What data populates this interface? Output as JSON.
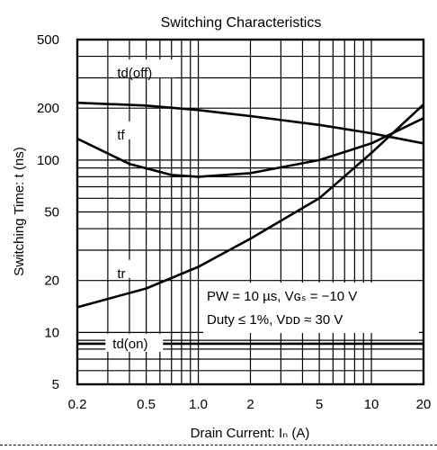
{
  "chart_data": {
    "type": "line",
    "title": "Switching Characteristics",
    "xlabel": "Drain Current: Iₙ (A)",
    "ylabel": "Switching Time: t (ns)",
    "x_scale": "log",
    "y_scale": "log",
    "xlim": [
      0.2,
      20
    ],
    "ylim": [
      5,
      500
    ],
    "x_ticks": [
      "0.2",
      "0.5",
      "1.0",
      "2",
      "5",
      "10",
      "20"
    ],
    "y_ticks": [
      "500",
      "200",
      "100",
      "50",
      "20",
      "10",
      "5"
    ],
    "grid": true,
    "series": [
      {
        "name": "td(off)",
        "x": [
          0.2,
          0.5,
          1,
          2,
          5,
          10,
          20
        ],
        "y": [
          215,
          207,
          195,
          180,
          160,
          143,
          125
        ]
      },
      {
        "name": "tf",
        "x": [
          0.2,
          0.4,
          0.7,
          1.0,
          2,
          5,
          10,
          20
        ],
        "y": [
          133,
          95,
          82,
          80,
          84,
          100,
          125,
          175
        ]
      },
      {
        "name": "tr",
        "x": [
          0.2,
          0.5,
          1,
          2,
          5,
          10,
          20
        ],
        "y": [
          14,
          18,
          24,
          35,
          60,
          110,
          210
        ]
      },
      {
        "name": "td(on)",
        "x": [
          0.2,
          0.5,
          1,
          20
        ],
        "y": [
          8.6,
          8.6,
          8.6,
          8.6
        ]
      }
    ],
    "annotations": [
      "PW = 10 µs, Vɢₛ = −10 V",
      "Duty ≤ 1%, Vᴅᴅ ≈ 30 V"
    ]
  }
}
